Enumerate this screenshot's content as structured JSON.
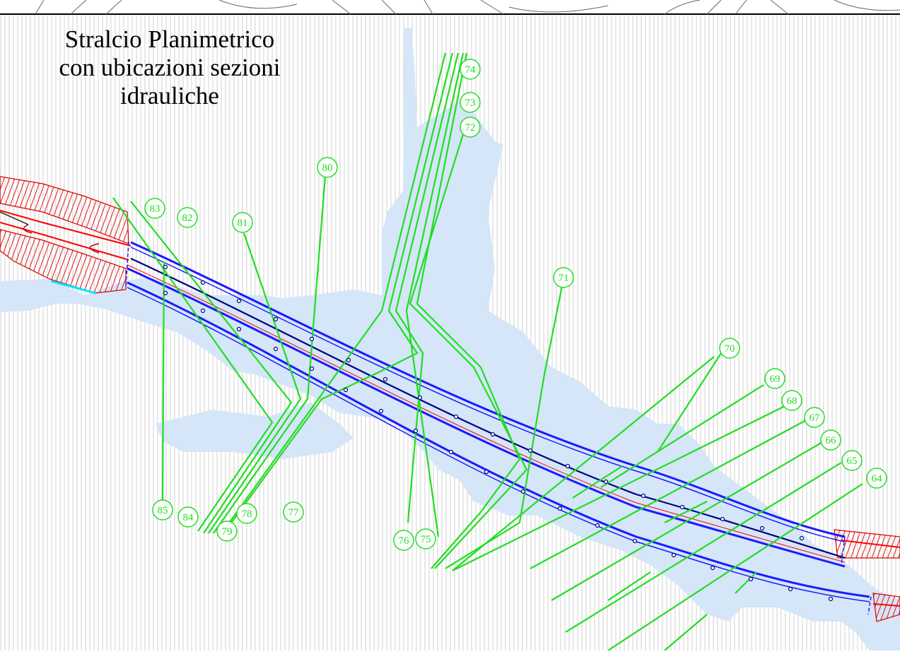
{
  "title_lines": [
    "Stralcio Planimetrico",
    "con ubicazioni sezioni",
    "idrauliche"
  ],
  "sections": [
    "85",
    "84",
    "83",
    "82",
    "81",
    "80",
    "79",
    "78",
    "77",
    "76",
    "75",
    "74",
    "73",
    "72",
    "71",
    "70",
    "69",
    "68",
    "67",
    "66",
    "65",
    "64"
  ],
  "colors": {
    "section_line": "#22dd22",
    "road": "#1a1aff",
    "road_dark": "#000080",
    "axis": "#ff0000",
    "embankment": "#dd0000",
    "water": "#d4e6f8",
    "hatch": "#c8c8c8"
  }
}
